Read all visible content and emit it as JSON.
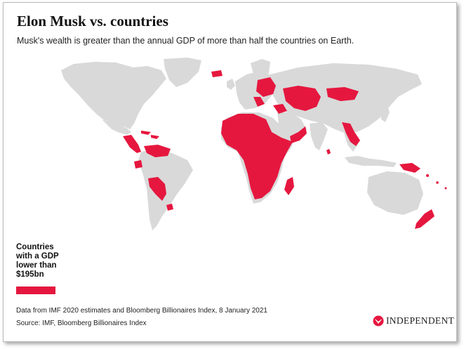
{
  "header": {
    "title": "Elon Musk vs. countries",
    "subtitle": "Musk's wealth is greater than the annual GDP of more than half the countries on Earth."
  },
  "legend": {
    "label": "Countries with a GDP lower than $195bn",
    "color": "#e5173f"
  },
  "map": {
    "land_color": "#d9d9d9",
    "highlight_color": "#e5173f",
    "highlighted_regions": [
      "Central America",
      "Caribbean",
      "Venezuela",
      "Ecuador",
      "Bolivia",
      "Paraguay",
      "Uruguay",
      "Iceland",
      "Eastern Europe",
      "Central Asia",
      "Mongolia",
      "Caucasus",
      "Yemen",
      "Oman",
      "Africa",
      "Madagascar",
      "Sri Lanka",
      "Myanmar",
      "Laos",
      "Cambodia",
      "Papua New Guinea",
      "Pacific Islands",
      "New Zealand"
    ]
  },
  "footer": {
    "note": "Data from IMF 2020 estimates and Bloomberg Billionaires Index, 8 January 2021",
    "source": "Source: IMF, Bloomberg Billionaires Index",
    "logo_text": "INDEPENDENT",
    "logo_icon": "independent-eagle-icon"
  }
}
